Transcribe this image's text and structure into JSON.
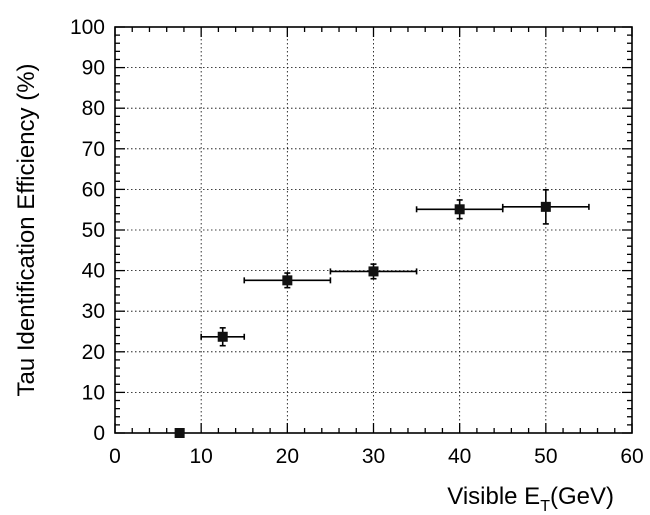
{
  "chart_data": {
    "type": "scatter",
    "xlabel_main": "Visible E",
    "xlabel_sub": "T",
    "xlabel_unit": "(GeV)",
    "ylabel": "Tau Identification Efficiency (%)",
    "xlim": [
      0,
      60
    ],
    "ylim": [
      0,
      100
    ],
    "x_ticks": [
      "0",
      "10",
      "20",
      "30",
      "40",
      "50",
      "60"
    ],
    "y_ticks": [
      "0",
      "10",
      "20",
      "30",
      "40",
      "50",
      "60",
      "70",
      "80",
      "90",
      "100"
    ],
    "grid": true,
    "marker_color": "#111111",
    "points": [
      {
        "x": 7.5,
        "y": 0.0,
        "x_err": 0.0,
        "y_err": 0.0
      },
      {
        "x": 12.5,
        "y": 23.7,
        "x_err": 2.5,
        "y_err": 2.2
      },
      {
        "x": 20.0,
        "y": 37.6,
        "x_err": 5.0,
        "y_err": 1.8
      },
      {
        "x": 30.0,
        "y": 39.8,
        "x_err": 5.0,
        "y_err": 1.8
      },
      {
        "x": 40.0,
        "y": 55.1,
        "x_err": 5.0,
        "y_err": 2.3
      },
      {
        "x": 50.0,
        "y": 55.7,
        "x_err": 5.0,
        "y_err": 4.2
      }
    ]
  }
}
